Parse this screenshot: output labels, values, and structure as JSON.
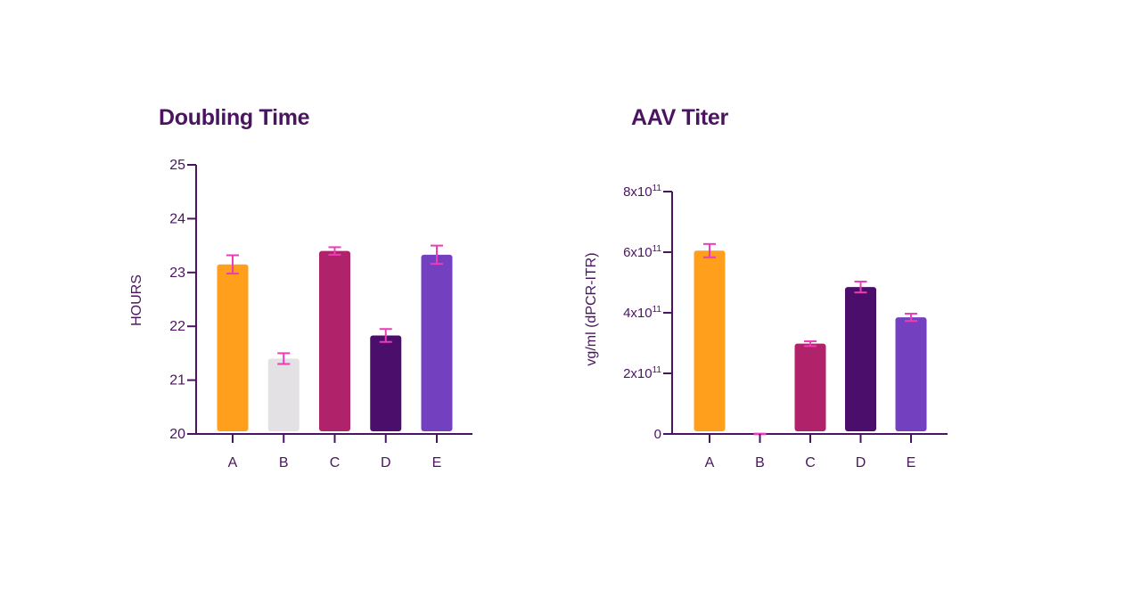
{
  "chart_data": [
    {
      "type": "bar",
      "title": "Doubling Time",
      "xlabel": "",
      "ylabel": "HOURS",
      "ylim": [
        20,
        25
      ],
      "yticks": [
        {
          "value": 20,
          "label": "20"
        },
        {
          "value": 21,
          "label": "21"
        },
        {
          "value": 22,
          "label": "22"
        },
        {
          "value": 23,
          "label": "23"
        },
        {
          "value": 24,
          "label": "24"
        },
        {
          "value": 25,
          "label": "25"
        }
      ],
      "categories": [
        "A",
        "B",
        "C",
        "D",
        "E"
      ],
      "values": [
        23.15,
        21.4,
        23.4,
        21.83,
        23.33
      ],
      "errors": [
        0.17,
        0.1,
        0.07,
        0.12,
        0.17
      ],
      "colors": [
        "#ff9f1c",
        "#e3e1e3",
        "#b0236b",
        "#4b0f6b",
        "#7340c0"
      ],
      "error_color": "#ee3bb6",
      "axis_color": "#4a1461"
    },
    {
      "type": "bar",
      "title": "AAV Titer",
      "xlabel": "",
      "ylabel": "vg/ml (dPCR-ITR)",
      "ylim": [
        0,
        800000000000.0
      ],
      "yticks": [
        {
          "value": 0,
          "label": "0"
        },
        {
          "value": 200000000000.0,
          "label": "2x10",
          "exp": "11"
        },
        {
          "value": 400000000000.0,
          "label": "4x10",
          "exp": "11"
        },
        {
          "value": 600000000000.0,
          "label": "6x10",
          "exp": "11"
        },
        {
          "value": 800000000000.0,
          "label": "8x10",
          "exp": "11"
        }
      ],
      "categories": [
        "A",
        "B",
        "C",
        "D",
        "E"
      ],
      "values": [
        605000000000.0,
        0,
        298000000000.0,
        485000000000.0,
        385000000000.0
      ],
      "errors": [
        22000000000.0,
        1000000000.0,
        8000000000.0,
        18000000000.0,
        12000000000.0
      ],
      "colors": [
        "#ff9f1c",
        "#e3e1e3",
        "#b0236b",
        "#4b0f6b",
        "#7340c0"
      ],
      "error_color": "#ee3bb6",
      "axis_color": "#4a1461"
    }
  ]
}
